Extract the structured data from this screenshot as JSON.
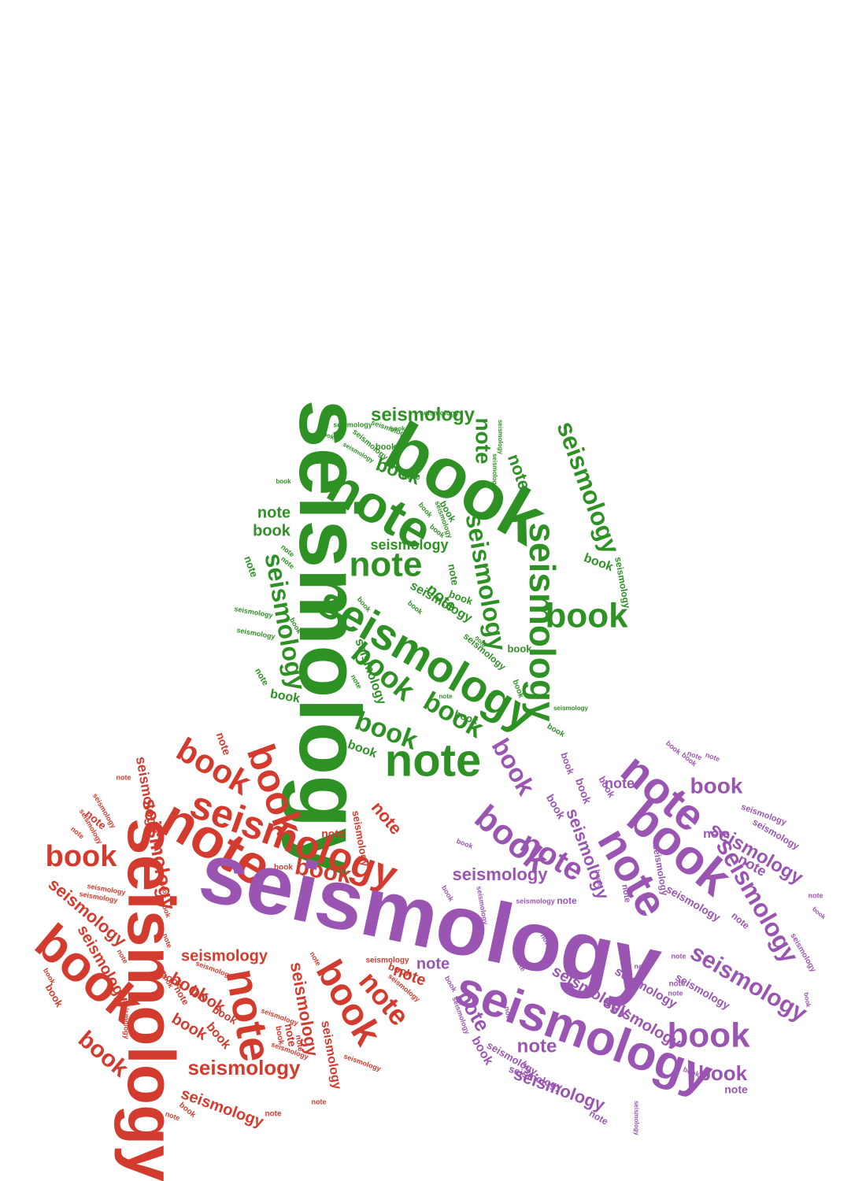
{
  "words": [
    "seismology",
    "note",
    "book"
  ],
  "clusters": [
    {
      "name": "green",
      "color": "#2e9124"
    },
    {
      "name": "red",
      "color": "#d23b2d"
    },
    {
      "name": "purple",
      "color": "#9a55b2"
    }
  ]
}
